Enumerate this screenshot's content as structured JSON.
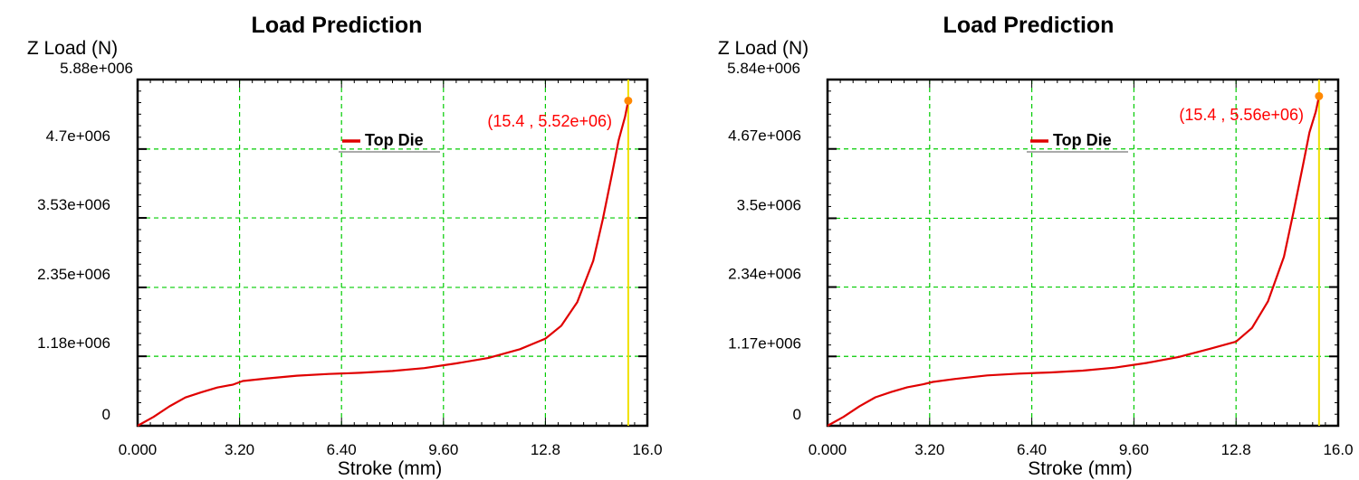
{
  "chart_data": [
    {
      "type": "line",
      "title": "Load Prediction",
      "ylabel": "Z Load (N)",
      "xlabel": "Stroke (mm)",
      "xlim": [
        0,
        16.0
      ],
      "ylim": [
        0,
        5880000.0
      ],
      "y_max_label": "5.88e+006",
      "x_ticks": [
        {
          "value": 0,
          "label": "0.000"
        },
        {
          "value": 3.2,
          "label": "3.20"
        },
        {
          "value": 6.4,
          "label": "6.40"
        },
        {
          "value": 9.6,
          "label": "9.60"
        },
        {
          "value": 12.8,
          "label": "12.8"
        },
        {
          "value": 16.0,
          "label": "16.0"
        }
      ],
      "y_ticks": [
        {
          "value": 0,
          "label": "0"
        },
        {
          "value": 1180000.0,
          "label": "1.18e+006"
        },
        {
          "value": 2350000.0,
          "label": "2.35e+006"
        },
        {
          "value": 3530000.0,
          "label": "3.53e+006"
        },
        {
          "value": 4700000.0,
          "label": "4.7e+006"
        }
      ],
      "grid": true,
      "legend_position": "top-center",
      "series": [
        {
          "name": "Top Die",
          "color": "#e00000",
          "x": [
            0,
            0.5,
            1.0,
            1.5,
            2.0,
            2.5,
            3.0,
            3.3,
            4.0,
            5.0,
            6.0,
            7.0,
            8.0,
            9.0,
            10.0,
            11.0,
            12.0,
            12.8,
            13.3,
            13.8,
            14.3,
            14.6,
            14.9,
            15.1,
            15.3,
            15.4
          ],
          "y": [
            0,
            150000,
            330000,
            480000,
            570000,
            650000,
            700000,
            760000,
            800000,
            850000,
            880000,
            900000,
            930000,
            980000,
            1060000,
            1150000,
            1300000,
            1480000,
            1700000,
            2100000,
            2800000,
            3500000,
            4300000,
            4850000,
            5250000,
            5520000
          ]
        }
      ],
      "marker_color": "#ff8800",
      "cursor_color": "#f0e000",
      "annotation": "(15.4 , 5.52e+06)"
    },
    {
      "type": "line",
      "title": "Load Prediction",
      "ylabel": "Z Load (N)",
      "xlabel": "Stroke (mm)",
      "xlim": [
        0,
        16.0
      ],
      "ylim": [
        0,
        5840000.0
      ],
      "y_max_label": "5.84e+006",
      "x_ticks": [
        {
          "value": 0,
          "label": "0.000"
        },
        {
          "value": 3.2,
          "label": "3.20"
        },
        {
          "value": 6.4,
          "label": "6.40"
        },
        {
          "value": 9.6,
          "label": "9.60"
        },
        {
          "value": 12.8,
          "label": "12.8"
        },
        {
          "value": 16.0,
          "label": "16.0"
        }
      ],
      "y_ticks": [
        {
          "value": 0,
          "label": "0"
        },
        {
          "value": 1170000.0,
          "label": "1.17e+006"
        },
        {
          "value": 2340000.0,
          "label": "2.34e+006"
        },
        {
          "value": 3500000.0,
          "label": "3.5e+006"
        },
        {
          "value": 4670000.0,
          "label": "4.67e+006"
        }
      ],
      "grid": true,
      "legend_position": "top-center",
      "series": [
        {
          "name": "Top Die",
          "color": "#e00000",
          "x": [
            0,
            0.5,
            1.0,
            1.5,
            2.0,
            2.5,
            3.0,
            3.3,
            4.0,
            5.0,
            6.0,
            7.0,
            8.0,
            9.0,
            10.0,
            11.0,
            12.0,
            12.8,
            13.3,
            13.8,
            14.3,
            14.6,
            14.9,
            15.1,
            15.3,
            15.4
          ],
          "y": [
            0,
            150000,
            330000,
            480000,
            570000,
            650000,
            700000,
            740000,
            790000,
            850000,
            880000,
            900000,
            930000,
            980000,
            1060000,
            1160000,
            1300000,
            1420000,
            1650000,
            2100000,
            2850000,
            3600000,
            4400000,
            4950000,
            5300000,
            5560000
          ]
        }
      ],
      "marker_color": "#ff8800",
      "cursor_color": "#f0e000",
      "annotation": "(15.4 , 5.56e+06)"
    }
  ]
}
